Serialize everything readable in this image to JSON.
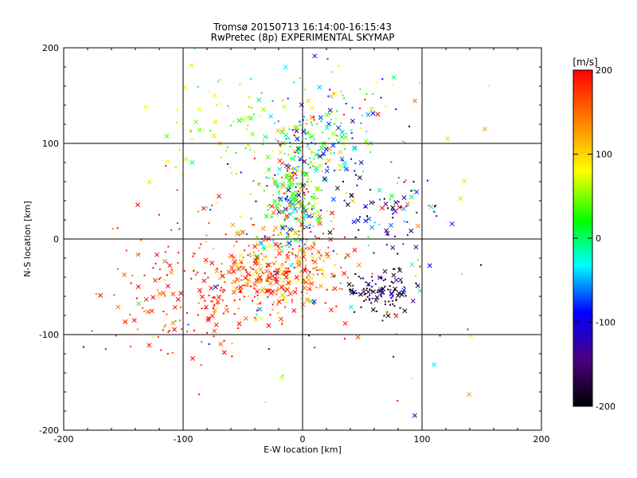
{
  "chart_data": {
    "type": "scatter",
    "title": "Tromsø 20150713 16:14:00-16:15:43",
    "subtitle": "RwPretec (8p) EXPERIMENTAL SKYMAP",
    "xlabel": "E-W location [km]",
    "ylabel": "N-S location [km]",
    "xlim": [
      -200,
      200
    ],
    "ylim": [
      -200,
      200
    ],
    "xticks": [
      -200,
      -100,
      0,
      100,
      200
    ],
    "yticks": [
      -200,
      -100,
      0,
      100,
      200
    ],
    "grid": true,
    "markers": "dots (+) and crosses (x), colored by velocity",
    "colorbar": {
      "label": "[m/s]",
      "range": [
        -200,
        200
      ],
      "ticks": [
        200,
        100,
        0,
        -100,
        -200
      ],
      "colormap": [
        "#000000",
        "#4b0082",
        "#0000ff",
        "#00ffff",
        "#00ff00",
        "#ffff00",
        "#ff8000",
        "#ff0000"
      ]
    },
    "clusters": [
      {
        "x": -20,
        "y": -35,
        "sx": 28,
        "sy": 22,
        "n": 360,
        "v_mean": 160,
        "v_sd": 55
      },
      {
        "x": -8,
        "y": 35,
        "sx": 12,
        "sy": 30,
        "n": 280,
        "v_mean": 40,
        "v_sd": 90
      },
      {
        "x": 15,
        "y": 100,
        "sx": 20,
        "sy": 18,
        "n": 140,
        "v_mean": -20,
        "v_sd": 70
      },
      {
        "x": 65,
        "y": -55,
        "sx": 12,
        "sy": 12,
        "n": 110,
        "v_mean": -180,
        "v_sd": 50
      },
      {
        "x": -90,
        "y": -55,
        "sx": 35,
        "sy": 35,
        "n": 160,
        "v_mean": 185,
        "v_sd": 30
      },
      {
        "x": -60,
        "y": 120,
        "sx": 30,
        "sy": 25,
        "n": 70,
        "v_mean": 60,
        "v_sd": 40
      },
      {
        "x": 70,
        "y": 30,
        "sx": 25,
        "sy": 25,
        "n": 80,
        "v_mean": -120,
        "v_sd": 60
      },
      {
        "x": 40,
        "y": 140,
        "sx": 30,
        "sy": 30,
        "n": 60,
        "v_mean": 20,
        "v_sd": 100
      },
      {
        "x": 0,
        "y": 0,
        "sx": 80,
        "sy": 80,
        "n": 140,
        "v_mean": 60,
        "v_sd": 140
      }
    ]
  }
}
